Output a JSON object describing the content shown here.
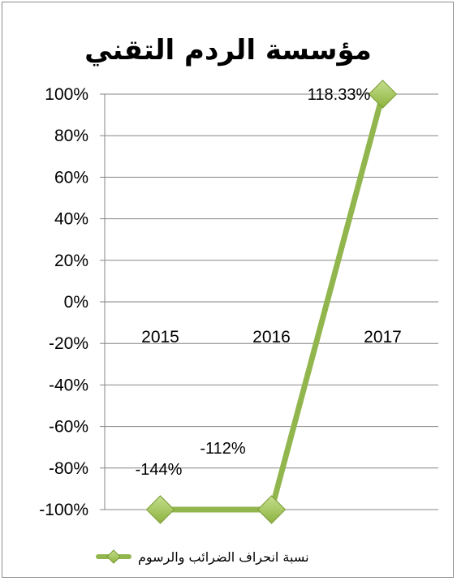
{
  "chart_data": {
    "type": "line",
    "title": "مؤسسة الردم التقني",
    "categories": [
      "2015",
      "2016",
      "2017"
    ],
    "series": [
      {
        "name": "نسبة انحراف الضرائب والرسوم",
        "display_values": [
          -100,
          -100,
          100
        ],
        "data_labels": [
          "-144%",
          "-112%",
          "118.33%"
        ]
      }
    ],
    "ylim": [
      -100,
      100
    ],
    "y_ticks": [
      100,
      80,
      60,
      40,
      20,
      0,
      -20,
      -40,
      -60,
      -80,
      -100
    ],
    "y_tick_labels": [
      "100%",
      "80%",
      "60%",
      "40%",
      "20%",
      "0%",
      "-20%",
      "-40%",
      "-60%",
      "-80%",
      "-100%"
    ],
    "y_format": "percent",
    "grid": true,
    "legend_position": "bottom",
    "line_color": "#92B64E",
    "marker_color": "#8DB33E",
    "marker": "diamond"
  }
}
